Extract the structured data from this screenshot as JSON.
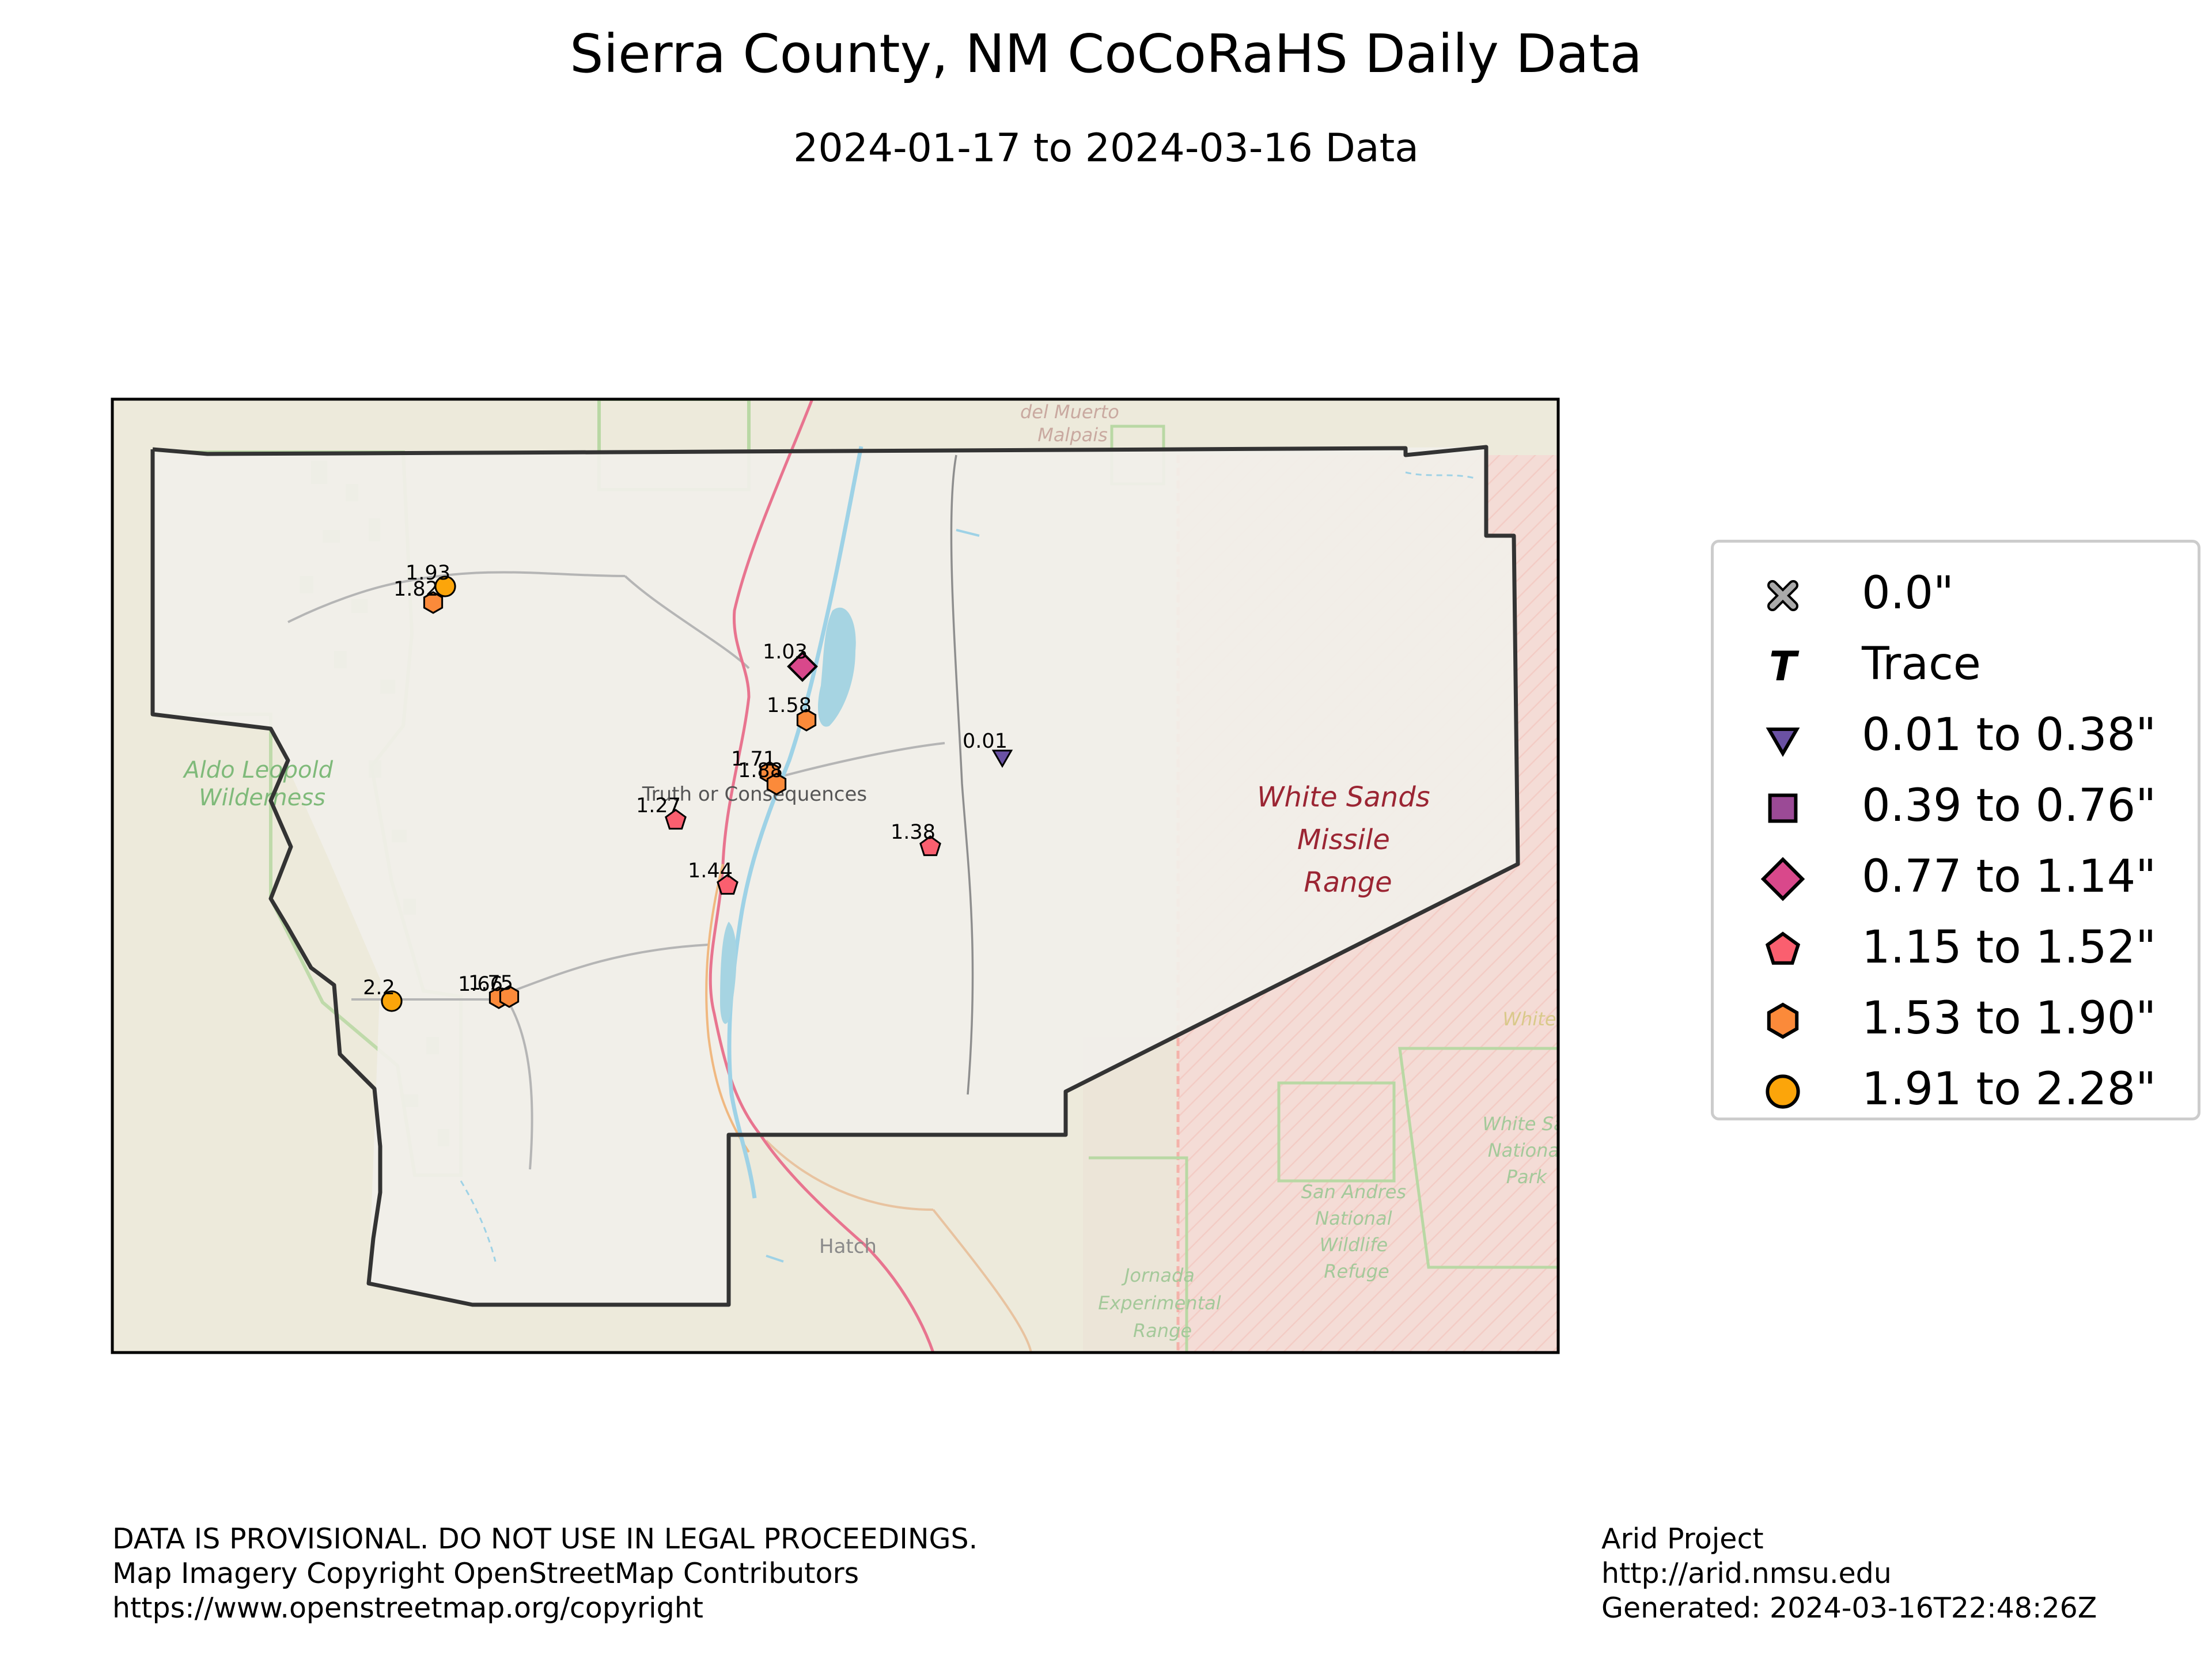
{
  "title": "Sierra County, NM CoCoRaHS Daily Data",
  "subtitle": "2024-01-17 to 2024-03-16 Data",
  "map": {
    "basemap_labels": {
      "wilderness": [
        "Aldo Leopold",
        "Wilderness"
      ],
      "missile_range": [
        "White Sands",
        "Missile",
        "Range"
      ],
      "town": "Truth or Consequences",
      "hatch": "Hatch",
      "del_muerto": [
        "del Muerto",
        "Malpais"
      ],
      "jornada": [
        "Jornada",
        "Experimental",
        "Range"
      ],
      "san_andres": [
        "San Andres",
        "National",
        "Wildlife",
        "Refuge"
      ],
      "white_sands_np": [
        "White Sa",
        "Nationa",
        "Park"
      ],
      "white_edge": "White"
    },
    "colors": {
      "trace_0_38": "#6a51a3",
      "range_0_39_0_76": "#9b4a96",
      "range_0_77_1_14": "#d9488b",
      "range_1_15_1_52": "#fa5f6f",
      "range_1_53_1_90": "#fb8a3a",
      "range_1_91_2_28": "#fca50a",
      "county_border": "#333333"
    },
    "stations": [
      {
        "label": "1.93",
        "value": 1.93,
        "symbol": "circle",
        "class": "range_1_91_2_28"
      },
      {
        "label": "1.82",
        "value": 1.82,
        "symbol": "hexagon",
        "class": "range_1_53_1_90"
      },
      {
        "label": "1.03",
        "value": 1.03,
        "symbol": "diamond",
        "class": "range_0_77_1_14"
      },
      {
        "label": "1.58",
        "value": 1.58,
        "symbol": "hexagon",
        "class": "range_1_53_1_90"
      },
      {
        "label": "0.01",
        "value": 0.01,
        "symbol": "triangle",
        "class": "trace_0_38"
      },
      {
        "label": "1.71",
        "value": 1.71,
        "symbol": "hexagon",
        "class": "range_1_53_1_90"
      },
      {
        "label": "1.88",
        "value": 1.88,
        "symbol": "hexagon",
        "class": "range_1_53_1_90"
      },
      {
        "label": "1.27",
        "value": 1.27,
        "symbol": "pentagon",
        "class": "range_1_15_1_52"
      },
      {
        "label": "1.38",
        "value": 1.38,
        "symbol": "pentagon",
        "class": "range_1_15_1_52"
      },
      {
        "label": "1.44",
        "value": 1.44,
        "symbol": "pentagon",
        "class": "range_1_15_1_52"
      },
      {
        "label": "2.2",
        "value": 2.2,
        "symbol": "circle",
        "class": "range_1_91_2_28"
      },
      {
        "label": "1.66",
        "value": 1.66,
        "symbol": "hexagon",
        "class": "range_1_53_1_90"
      },
      {
        "label": "1.75",
        "value": 1.75,
        "symbol": "hexagon",
        "class": "range_1_53_1_90"
      }
    ]
  },
  "legend": {
    "items": [
      {
        "label": "0.0\"",
        "symbol": "x",
        "color": "#aaaaaa"
      },
      {
        "label": "Trace",
        "symbol": "T",
        "color": "#000000"
      },
      {
        "label": "0.01 to 0.38\"",
        "symbol": "triangle",
        "color": "#6a51a3"
      },
      {
        "label": "0.39 to 0.76\"",
        "symbol": "square",
        "color": "#9b4a96"
      },
      {
        "label": "0.77 to 1.14\"",
        "symbol": "diamond",
        "color": "#d9488b"
      },
      {
        "label": "1.15 to 1.52\"",
        "symbol": "pentagon",
        "color": "#fa5f6f"
      },
      {
        "label": "1.53 to 1.90\"",
        "symbol": "hexagon",
        "color": "#fb8a3a"
      },
      {
        "label": "1.91 to 2.28\"",
        "symbol": "circle",
        "color": "#fca50a"
      }
    ]
  },
  "footer": {
    "left": [
      "DATA IS PROVISIONAL. DO NOT USE IN LEGAL PROCEEDINGS.",
      "Map Imagery Copyright OpenStreetMap Contributors",
      "https://www.openstreetmap.org/copyright"
    ],
    "right": [
      "Arid Project",
      "http://arid.nmsu.edu",
      "Generated: 2024-03-16T22:48:26Z"
    ]
  }
}
